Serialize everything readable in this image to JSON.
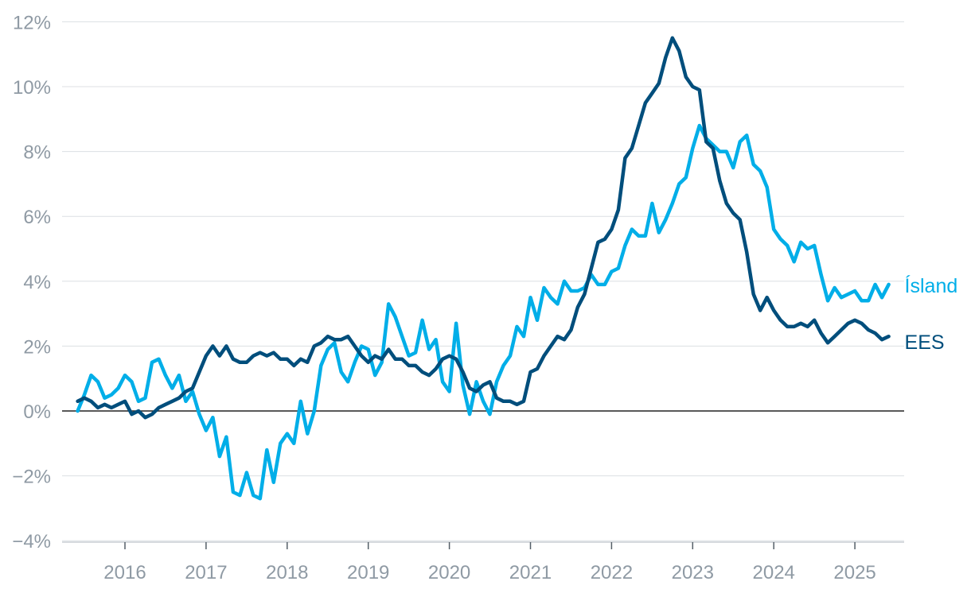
{
  "chart_data": {
    "type": "line",
    "title": "",
    "xlabel": "",
    "ylabel": "",
    "ylim": [
      -4,
      12
    ],
    "y_ticks": [
      -4,
      -2,
      0,
      2,
      4,
      6,
      8,
      10,
      12
    ],
    "y_tick_labels": [
      "−4%",
      "−2%",
      "0%",
      "2%",
      "4%",
      "6%",
      "8%",
      "10%",
      "12%"
    ],
    "x_tick_labels": [
      "2016",
      "2017",
      "2018",
      "2019",
      "2020",
      "2021",
      "2022",
      "2023",
      "2024",
      "2025"
    ],
    "x_range": [
      "2015-06",
      "2025-06"
    ],
    "grid": true,
    "legend": "inline labels at line ends",
    "series": [
      {
        "name": "Ísland",
        "color": "#00aee8",
        "x": [
          "2015-06",
          "2015-07",
          "2015-08",
          "2015-09",
          "2015-10",
          "2015-11",
          "2015-12",
          "2016-01",
          "2016-02",
          "2016-03",
          "2016-04",
          "2016-05",
          "2016-06",
          "2016-07",
          "2016-08",
          "2016-09",
          "2016-10",
          "2016-11",
          "2016-12",
          "2017-01",
          "2017-02",
          "2017-03",
          "2017-04",
          "2017-05",
          "2017-06",
          "2017-07",
          "2017-08",
          "2017-09",
          "2017-10",
          "2017-11",
          "2017-12",
          "2018-01",
          "2018-02",
          "2018-03",
          "2018-04",
          "2018-05",
          "2018-06",
          "2018-07",
          "2018-08",
          "2018-09",
          "2018-10",
          "2018-11",
          "2018-12",
          "2019-01",
          "2019-02",
          "2019-03",
          "2019-04",
          "2019-05",
          "2019-06",
          "2019-07",
          "2019-08",
          "2019-09",
          "2019-10",
          "2019-11",
          "2019-12",
          "2020-01",
          "2020-02",
          "2020-03",
          "2020-04",
          "2020-05",
          "2020-06",
          "2020-07",
          "2020-08",
          "2020-09",
          "2020-10",
          "2020-11",
          "2020-12",
          "2021-01",
          "2021-02",
          "2021-03",
          "2021-04",
          "2021-05",
          "2021-06",
          "2021-07",
          "2021-08",
          "2021-09",
          "2021-10",
          "2021-11",
          "2021-12",
          "2022-01",
          "2022-02",
          "2022-03",
          "2022-04",
          "2022-05",
          "2022-06",
          "2022-07",
          "2022-08",
          "2022-09",
          "2022-10",
          "2022-11",
          "2022-12",
          "2023-01",
          "2023-02",
          "2023-03",
          "2023-04",
          "2023-05",
          "2023-06",
          "2023-07",
          "2023-08",
          "2023-09",
          "2023-10",
          "2023-11",
          "2023-12",
          "2024-01",
          "2024-02",
          "2024-03",
          "2024-04",
          "2024-05",
          "2024-06",
          "2024-07",
          "2024-08",
          "2024-09",
          "2024-10",
          "2024-11",
          "2024-12",
          "2025-01",
          "2025-02",
          "2025-03",
          "2025-04",
          "2025-05",
          "2025-06"
        ],
        "values": [
          0.0,
          0.5,
          1.1,
          0.9,
          0.4,
          0.5,
          0.7,
          1.1,
          0.9,
          0.3,
          0.4,
          1.5,
          1.6,
          1.1,
          0.7,
          1.1,
          0.3,
          0.6,
          -0.1,
          -0.6,
          -0.2,
          -1.4,
          -0.8,
          -2.5,
          -2.6,
          -1.9,
          -2.6,
          -2.7,
          -1.2,
          -2.2,
          -1.0,
          -0.7,
          -1.0,
          0.3,
          -0.7,
          0.0,
          1.4,
          1.9,
          2.1,
          1.2,
          0.9,
          1.5,
          2.0,
          1.9,
          1.1,
          1.5,
          3.3,
          2.9,
          2.3,
          1.7,
          1.8,
          2.8,
          1.9,
          2.2,
          0.9,
          0.6,
          2.7,
          0.8,
          -0.1,
          0.9,
          0.3,
          -0.1,
          0.9,
          1.4,
          1.7,
          2.6,
          2.3,
          3.5,
          2.8,
          3.8,
          3.5,
          3.3,
          4.0,
          3.7,
          3.7,
          3.8,
          4.2,
          3.9,
          3.9,
          4.3,
          4.4,
          5.1,
          5.6,
          5.4,
          5.4,
          6.4,
          5.5,
          5.9,
          6.4,
          7.0,
          7.2,
          8.1,
          8.8,
          8.4,
          8.2,
          8.0,
          8.0,
          7.5,
          8.3,
          8.5,
          7.6,
          7.4,
          6.9,
          5.6,
          5.3,
          5.1,
          4.6,
          5.2,
          5.0,
          5.1,
          4.2,
          3.4,
          3.8,
          3.5,
          3.6,
          3.7,
          3.4,
          3.4,
          3.9,
          3.5,
          3.9
        ]
      },
      {
        "name": "EES",
        "color": "#004e7c",
        "x": [
          "2015-06",
          "2015-07",
          "2015-08",
          "2015-09",
          "2015-10",
          "2015-11",
          "2015-12",
          "2016-01",
          "2016-02",
          "2016-03",
          "2016-04",
          "2016-05",
          "2016-06",
          "2016-07",
          "2016-08",
          "2016-09",
          "2016-10",
          "2016-11",
          "2016-12",
          "2017-01",
          "2017-02",
          "2017-03",
          "2017-04",
          "2017-05",
          "2017-06",
          "2017-07",
          "2017-08",
          "2017-09",
          "2017-10",
          "2017-11",
          "2017-12",
          "2018-01",
          "2018-02",
          "2018-03",
          "2018-04",
          "2018-05",
          "2018-06",
          "2018-07",
          "2018-08",
          "2018-09",
          "2018-10",
          "2018-11",
          "2018-12",
          "2019-01",
          "2019-02",
          "2019-03",
          "2019-04",
          "2019-05",
          "2019-06",
          "2019-07",
          "2019-08",
          "2019-09",
          "2019-10",
          "2019-11",
          "2019-12",
          "2020-01",
          "2020-02",
          "2020-03",
          "2020-04",
          "2020-05",
          "2020-06",
          "2020-07",
          "2020-08",
          "2020-09",
          "2020-10",
          "2020-11",
          "2020-12",
          "2021-01",
          "2021-02",
          "2021-03",
          "2021-04",
          "2021-05",
          "2021-06",
          "2021-07",
          "2021-08",
          "2021-09",
          "2021-10",
          "2021-11",
          "2021-12",
          "2022-01",
          "2022-02",
          "2022-03",
          "2022-04",
          "2022-05",
          "2022-06",
          "2022-07",
          "2022-08",
          "2022-09",
          "2022-10",
          "2022-11",
          "2022-12",
          "2023-01",
          "2023-02",
          "2023-03",
          "2023-04",
          "2023-05",
          "2023-06",
          "2023-07",
          "2023-08",
          "2023-09",
          "2023-10",
          "2023-11",
          "2023-12",
          "2024-01",
          "2024-02",
          "2024-03",
          "2024-04",
          "2024-05",
          "2024-06",
          "2024-07",
          "2024-08",
          "2024-09",
          "2024-10",
          "2024-11",
          "2024-12",
          "2025-01",
          "2025-02",
          "2025-03",
          "2025-04",
          "2025-05",
          "2025-06"
        ],
        "values": [
          0.3,
          0.4,
          0.3,
          0.1,
          0.2,
          0.1,
          0.2,
          0.3,
          -0.1,
          0.0,
          -0.2,
          -0.1,
          0.1,
          0.2,
          0.3,
          0.4,
          0.6,
          0.7,
          1.2,
          1.7,
          2.0,
          1.7,
          2.0,
          1.6,
          1.5,
          1.5,
          1.7,
          1.8,
          1.7,
          1.8,
          1.6,
          1.6,
          1.4,
          1.6,
          1.5,
          2.0,
          2.1,
          2.3,
          2.2,
          2.2,
          2.3,
          2.0,
          1.7,
          1.5,
          1.7,
          1.6,
          1.9,
          1.6,
          1.6,
          1.4,
          1.4,
          1.2,
          1.1,
          1.3,
          1.6,
          1.7,
          1.6,
          1.2,
          0.7,
          0.6,
          0.8,
          0.9,
          0.4,
          0.3,
          0.3,
          0.2,
          0.3,
          1.2,
          1.3,
          1.7,
          2.0,
          2.3,
          2.2,
          2.5,
          3.2,
          3.6,
          4.4,
          5.2,
          5.3,
          5.6,
          6.2,
          7.8,
          8.1,
          8.8,
          9.5,
          9.8,
          10.1,
          10.9,
          11.5,
          11.1,
          10.3,
          10.0,
          9.9,
          8.3,
          8.1,
          7.1,
          6.4,
          6.1,
          5.9,
          4.9,
          3.6,
          3.1,
          3.5,
          3.1,
          2.8,
          2.6,
          2.6,
          2.7,
          2.6,
          2.8,
          2.4,
          2.1,
          2.3,
          2.5,
          2.7,
          2.8,
          2.7,
          2.5,
          2.4,
          2.2,
          2.3
        ]
      }
    ]
  }
}
